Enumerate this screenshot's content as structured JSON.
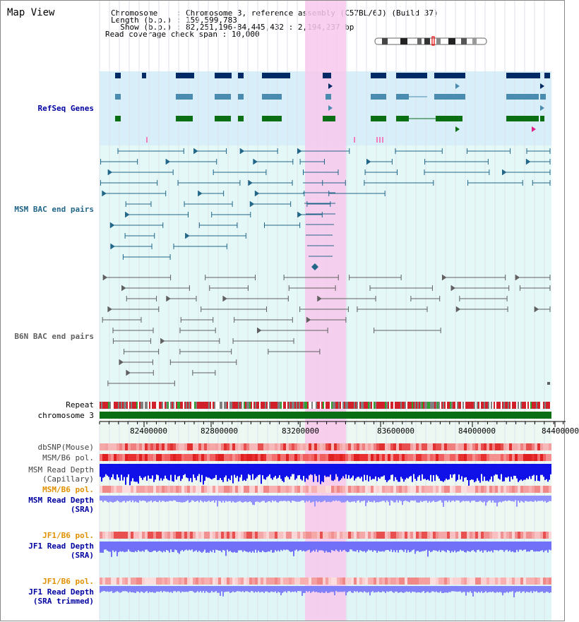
{
  "app": {
    "title": "Map View"
  },
  "header": {
    "chromosome_label": "Chromosome",
    "chromosome_value": "Chromosome 3, reference assembly (C57BL/6J) (Build 37)",
    "length_label": "Length (b.p.)",
    "length_value": "159,599,783",
    "show_label": "Show (b.p.)",
    "show_value": "82,251,196-84,445,432 : 2,194,237 bp",
    "coverage_label": "Read coverage check span",
    "coverage_value": "10,000"
  },
  "tracks": {
    "refseq": "RefSeq Genes",
    "msm_bac": "MSM BAC end pairs",
    "b6n_bac": "B6N BAC end pairs",
    "repeat": "Repeat",
    "chromosome": "chromosome 3",
    "dbsnp": "dbSNP(Mouse)",
    "msm_b6_pol_1": "MSM/B6 pol.",
    "msm_read_depth_cap_1": "MSM Read Depth",
    "msm_read_depth_cap_2": "(Capillary)",
    "msm_b6_pol_2": "MSM/B6 pol.",
    "msm_read_depth_sra_1": "MSM Read Depth",
    "msm_read_depth_sra_2": "(SRA)",
    "jf1_b6_pol_1": "JF1/B6 pol.",
    "jf1_read_depth_1": "JF1 Read Depth",
    "jf1_read_depth_2": "(SRA)",
    "jf1_b6_pol_2": "JF1/B6 pol.",
    "jf1_read_depth_trim_1": "JF1 Read Depth",
    "jf1_read_depth_trim_2": "(SRA trimmed)"
  },
  "axis": {
    "ticks": [
      "82400000",
      "82800000",
      "83200000",
      "83600000",
      "84000000",
      "84400000"
    ]
  },
  "colors": {
    "highlight": "#f8c8ec",
    "refseq_bg": "#d8eef8",
    "bac_bg": "#e4f8f8",
    "lower_bg": "#e8f8f0",
    "gene_dark": "#002a66",
    "gene_mid": "#4a8cb0",
    "gene_green": "#0a6e14",
    "msm_line": "#226688",
    "b6n_line": "#606060",
    "chrom_green": "#0a6e14",
    "label_blue": "#0000a0",
    "label_gold": "#e09000",
    "depth_blue": "#1010e0",
    "depth_light": "#8888ff"
  }
}
